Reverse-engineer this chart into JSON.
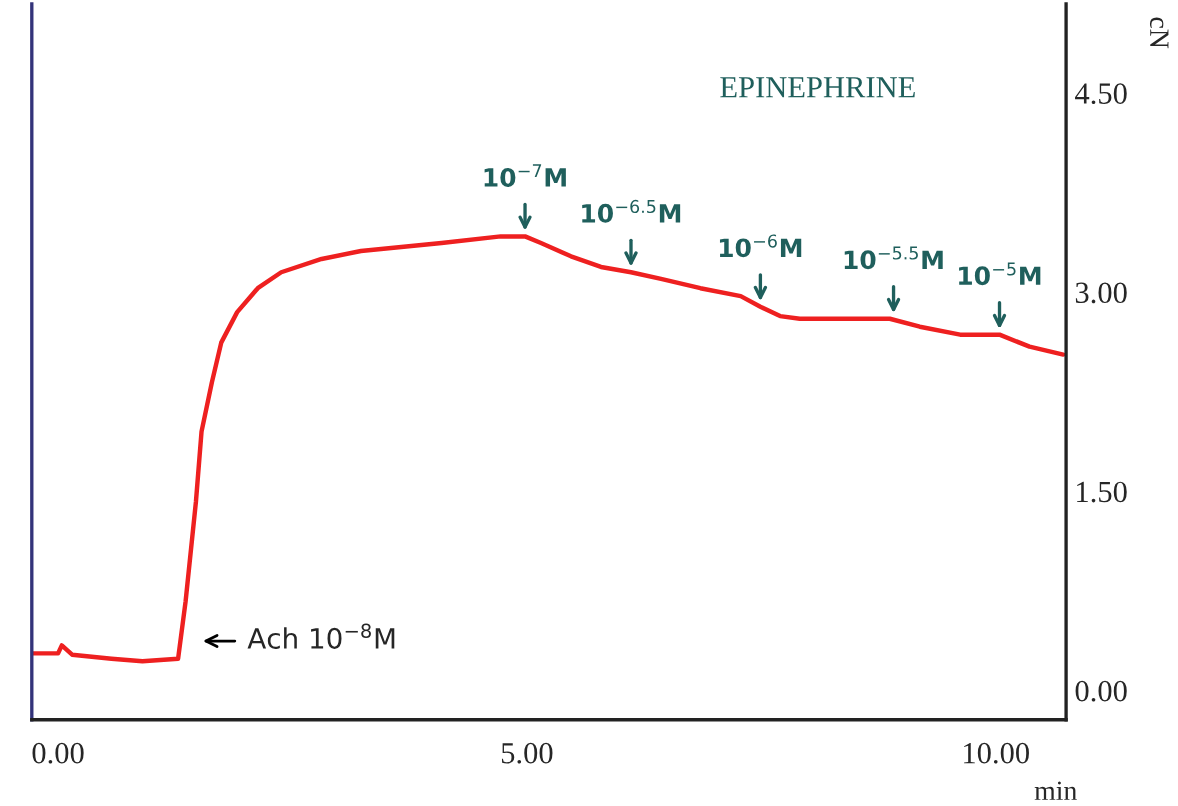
{
  "chart_data": {
    "type": "line",
    "xlabel": "min",
    "ylabel": "cN",
    "x": [
      -0.28,
      0.0,
      0.04,
      0.15,
      0.57,
      0.9,
      1.28,
      1.36,
      1.47,
      1.53,
      1.64,
      1.74,
      1.91,
      2.13,
      2.38,
      2.81,
      3.23,
      3.66,
      4.09,
      4.72,
      4.98,
      5.15,
      5.47,
      5.79,
      6.11,
      6.43,
      6.85,
      7.28,
      7.49,
      7.7,
      7.91,
      8.87,
      9.19,
      9.62,
      10.04,
      10.36,
      10.72
    ],
    "series": [
      {
        "color": "#ee2020",
        "values": [
          0.28,
          0.28,
          0.34,
          0.27,
          0.24,
          0.22,
          0.24,
          0.67,
          1.42,
          1.95,
          2.32,
          2.62,
          2.85,
          3.03,
          3.15,
          3.25,
          3.31,
          3.34,
          3.37,
          3.42,
          3.42,
          3.37,
          3.27,
          3.19,
          3.15,
          3.1,
          3.03,
          2.97,
          2.89,
          2.82,
          2.8,
          2.8,
          2.74,
          2.68,
          2.68,
          2.59,
          2.53
        ]
      }
    ],
    "xlim": [
      -0.28,
      10.75
    ],
    "ylim": [
      -0.22,
      5.17
    ],
    "xticks": [
      {
        "value": 0,
        "label": "0.00"
      },
      {
        "value": 5,
        "label": "5.00"
      },
      {
        "value": 10,
        "label": "10.00"
      }
    ],
    "yticks": [
      {
        "value": 0,
        "label": "0.00"
      },
      {
        "value": 1.5,
        "label": "1.50"
      },
      {
        "value": 3,
        "label": "3.00"
      },
      {
        "value": 4.5,
        "label": "4.50"
      }
    ],
    "tick_labels": "xy",
    "grid": false,
    "legend": false,
    "marker": "none",
    "line_style": "solid",
    "annotations": [
      "EPINEPHRINE",
      "Ach 10$^{−8}$M",
      {
        "text": "10$^{−7}$M",
        "x": 4.98,
        "y": 3.42
      },
      {
        "text": "10$^{−6.5}$M",
        "x": 6.11,
        "y": 3.15
      },
      {
        "text": "10$^{−6}$M",
        "x": 7.49,
        "y": 2.89
      },
      {
        "text": "10$^{−5.5}$M",
        "x": 8.91,
        "y": 2.8
      },
      {
        "text": "10$^{−5}$M",
        "x": 10.04,
        "y": 2.68
      }
    ]
  }
}
